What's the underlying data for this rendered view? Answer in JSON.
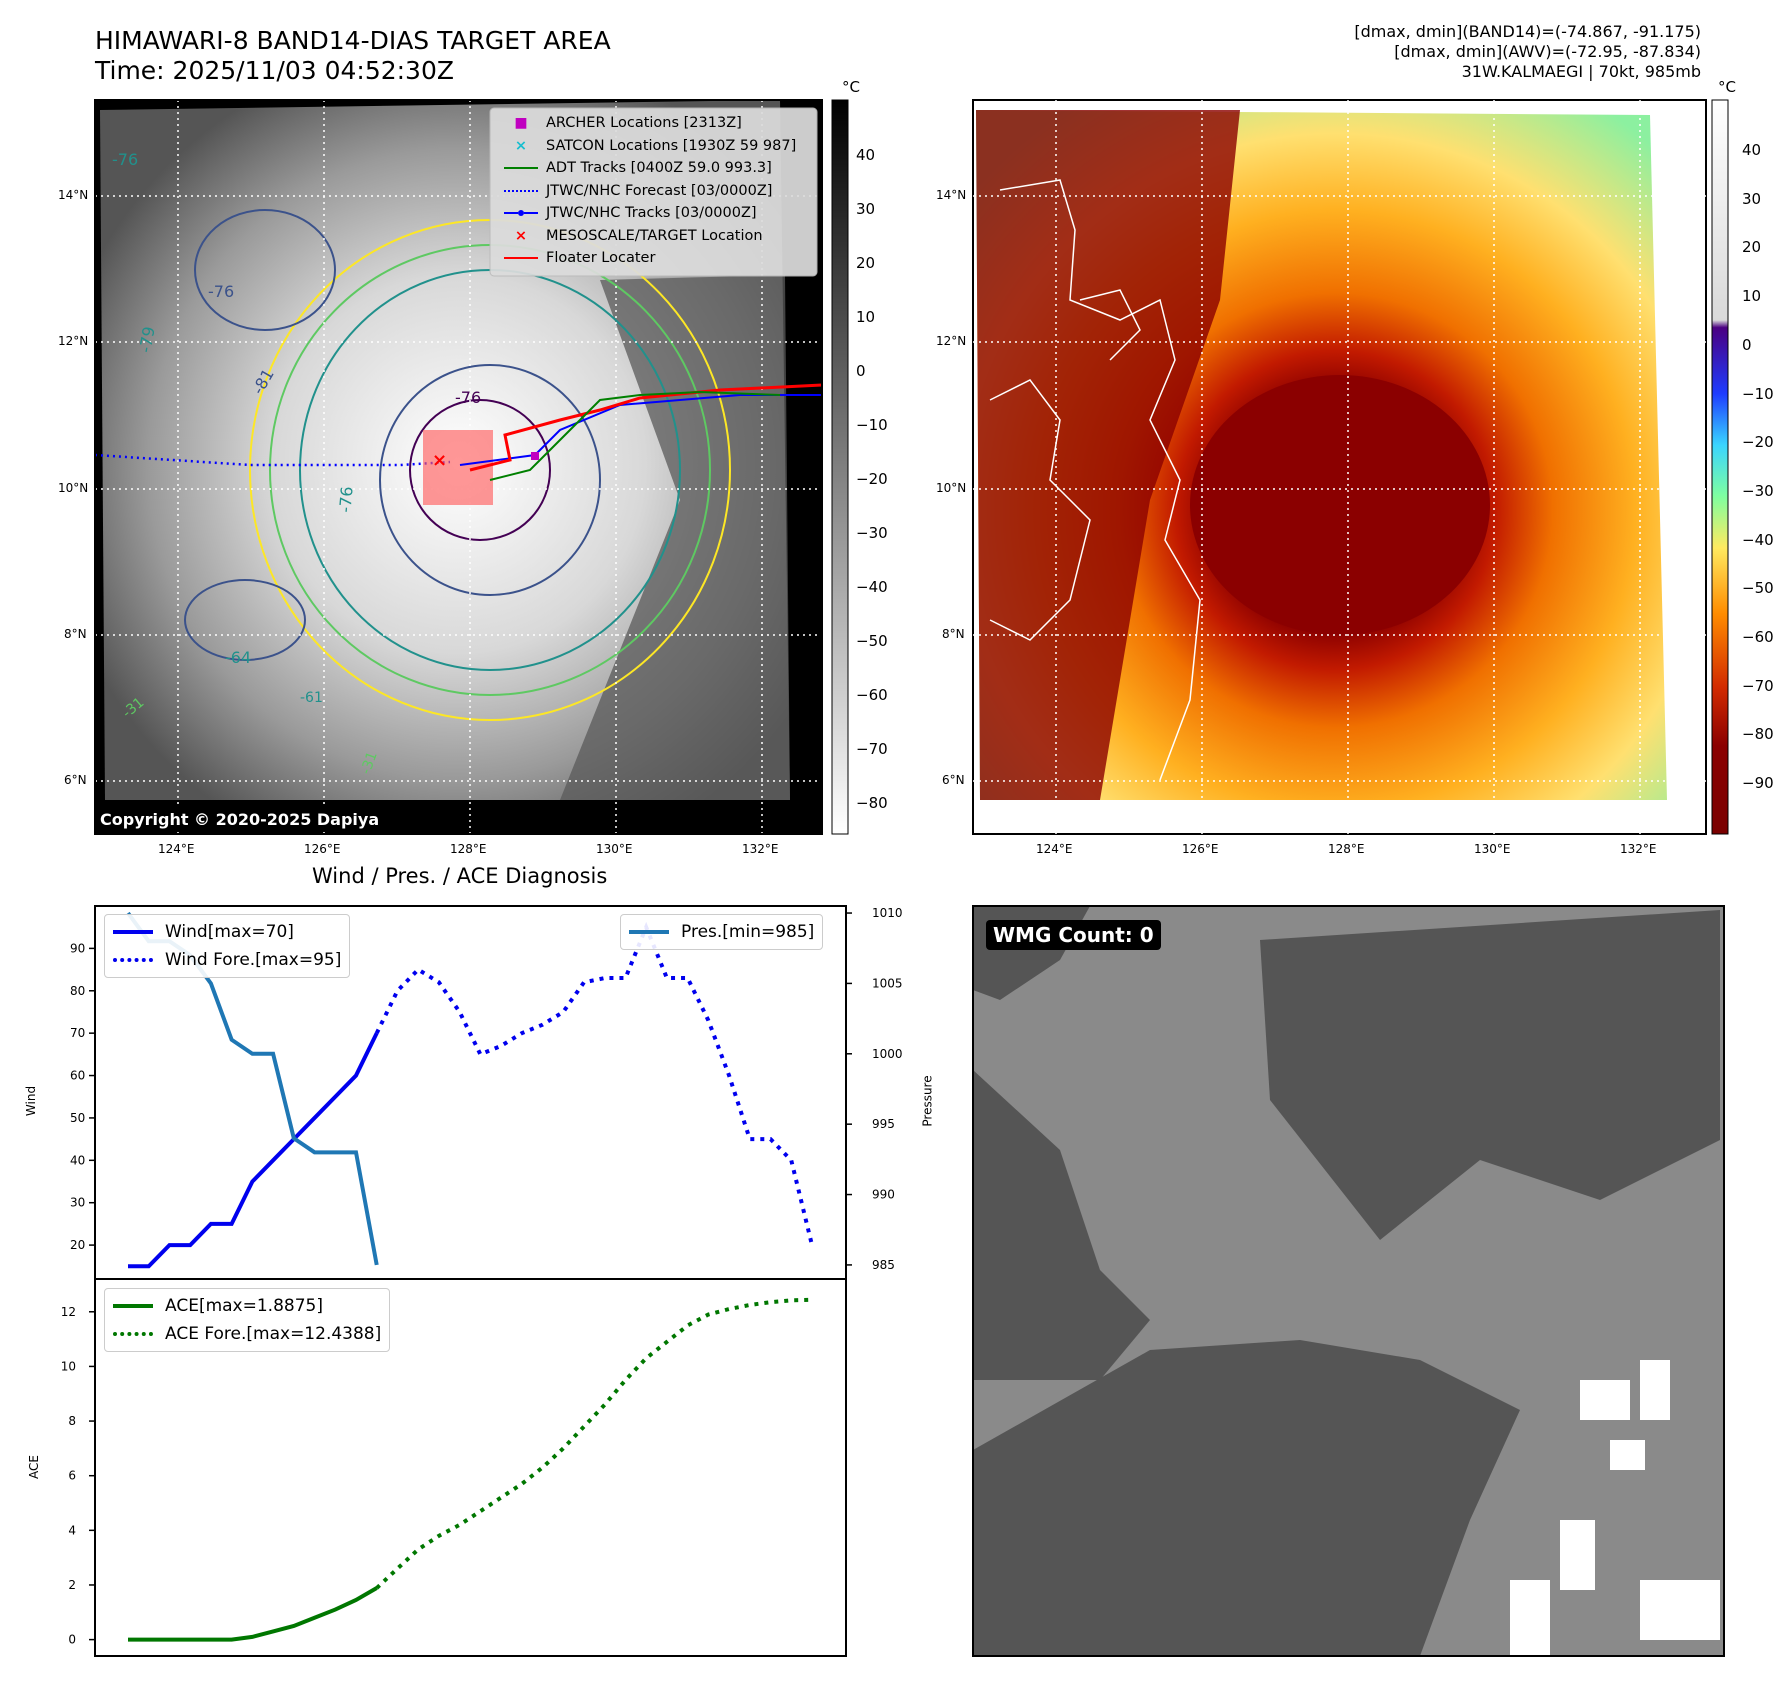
{
  "header": {
    "title_line1": "HIMAWARI-8 BAND14-DIAS TARGET AREA",
    "title_line2": "Time: 2025/11/03 04:52:30Z",
    "dmax_band14": "[dmax, dmin](BAND14)=(-74.867, -91.175)",
    "dmax_awv": "[dmax, dmin](AWV)=(-72.95, -87.834)",
    "storm_info": "31W.KALMAEGI | 70kt, 985mb"
  },
  "map": {
    "lon_labels": [
      "124°E",
      "126°E",
      "128°E",
      "130°E",
      "132°E"
    ],
    "lat_labels": [
      "14°N",
      "12°N",
      "10°N",
      "8°N",
      "6°N"
    ],
    "copyright": "Copyright © 2020-2025 Dapiya",
    "contour_labels": [
      "-76",
      "-76",
      "-79",
      "-81",
      "-76",
      "-64",
      "-76",
      "-61",
      "-31",
      "-31"
    ],
    "legend": [
      {
        "label": "ARCHER Locations [2313Z]",
        "color": "#c000c0",
        "marker": "square"
      },
      {
        "label": "SATCON Locations [1930Z 59 987]",
        "color": "#17becf",
        "marker": "x"
      },
      {
        "label": "ADT Tracks [0400Z 59.0 993.3]",
        "color": "#008000",
        "marker": "line"
      },
      {
        "label": "JTWC/NHC Forecast [03/0000Z]",
        "color": "#0000ff",
        "marker": "dotted"
      },
      {
        "label": "JTWC/NHC Tracks [03/0000Z]",
        "color": "#0000ff",
        "marker": "line-dot"
      },
      {
        "label": "MESOSCALE/TARGET Location",
        "color": "#ff0000",
        "marker": "x"
      },
      {
        "label": "Floater Locater",
        "color": "#ff0000",
        "marker": "line"
      }
    ]
  },
  "colorbar_gray": {
    "unit": "°C",
    "ticks": [
      "40",
      "30",
      "20",
      "10",
      "0",
      "−10",
      "−20",
      "−30",
      "−40",
      "−50",
      "−60",
      "−70",
      "−80"
    ]
  },
  "colorbar_awv": {
    "unit": "°C",
    "ticks": [
      "40",
      "30",
      "20",
      "10",
      "0",
      "−10",
      "−20",
      "−30",
      "−40",
      "−50",
      "−60",
      "−70",
      "−80",
      "−90"
    ]
  },
  "wmg": {
    "label": "WMG Count: 0"
  },
  "colors": {
    "wind": "#0000ee",
    "pressure": "#1f77b4",
    "ace": "#007700"
  },
  "chart_data": [
    {
      "type": "line",
      "title": "Wind / Pres. / ACE Diagnosis",
      "ylabel": "Wind",
      "ylabel_right": "Pressure",
      "ylim": [
        12,
        100
      ],
      "ylim_right": [
        984,
        1010.5
      ],
      "yticks": [
        20,
        30,
        40,
        50,
        60,
        70,
        80,
        90
      ],
      "yticks_right": [
        985,
        990,
        995,
        1000,
        1005,
        1010
      ],
      "series": [
        {
          "name": "Wind[max=70]",
          "axis": "left",
          "style": "solid",
          "x": [
            0,
            1,
            2,
            3,
            4,
            5,
            6,
            7,
            8,
            9,
            10,
            11,
            12
          ],
          "values": [
            15,
            15,
            20,
            20,
            25,
            25,
            35,
            40,
            45,
            50,
            55,
            60,
            70
          ]
        },
        {
          "name": "Wind Fore.[max=95]",
          "axis": "left",
          "style": "dotted",
          "x": [
            12,
            13,
            14,
            15,
            16,
            17,
            18,
            19,
            20,
            21,
            22,
            23,
            24,
            25,
            26,
            27,
            28,
            29,
            30,
            31,
            32,
            33
          ],
          "values": [
            70,
            80,
            85,
            82,
            75,
            65,
            67,
            70,
            72,
            75,
            82,
            83,
            83,
            95,
            83,
            83,
            73,
            60,
            45,
            45,
            40,
            20
          ]
        },
        {
          "name": "Pres.[min=985]",
          "axis": "right",
          "style": "solid",
          "x": [
            0,
            1,
            2,
            3,
            4,
            5,
            6,
            7,
            8,
            9,
            10,
            11,
            12
          ],
          "values": [
            1010,
            1008,
            1008,
            1007,
            1005,
            1001,
            1000,
            1000,
            994,
            993,
            993,
            993,
            985
          ]
        }
      ]
    },
    {
      "type": "line",
      "ylabel": "ACE",
      "ylim": [
        -0.6,
        13.2
      ],
      "yticks": [
        0,
        2,
        4,
        6,
        8,
        10,
        12
      ],
      "series": [
        {
          "name": "ACE[max=1.8875]",
          "style": "solid",
          "x": [
            0,
            1,
            2,
            3,
            4,
            5,
            6,
            7,
            8,
            9,
            10,
            11,
            12
          ],
          "values": [
            0,
            0,
            0,
            0,
            0,
            0,
            0.1,
            0.3,
            0.5,
            0.8,
            1.1,
            1.45,
            1.8875
          ]
        },
        {
          "name": "ACE Fore.[max=12.4388]",
          "style": "dotted",
          "x": [
            12,
            13,
            14,
            15,
            16,
            17,
            18,
            19,
            20,
            21,
            22,
            23,
            24,
            25,
            26,
            27,
            28,
            29,
            30,
            31,
            32,
            33
          ],
          "values": [
            1.8875,
            2.6,
            3.3,
            3.8,
            4.2,
            4.7,
            5.2,
            5.7,
            6.3,
            7.0,
            7.8,
            8.6,
            9.5,
            10.3,
            10.9,
            11.5,
            11.9,
            12.1,
            12.25,
            12.35,
            12.42,
            12.4388
          ]
        }
      ]
    }
  ]
}
